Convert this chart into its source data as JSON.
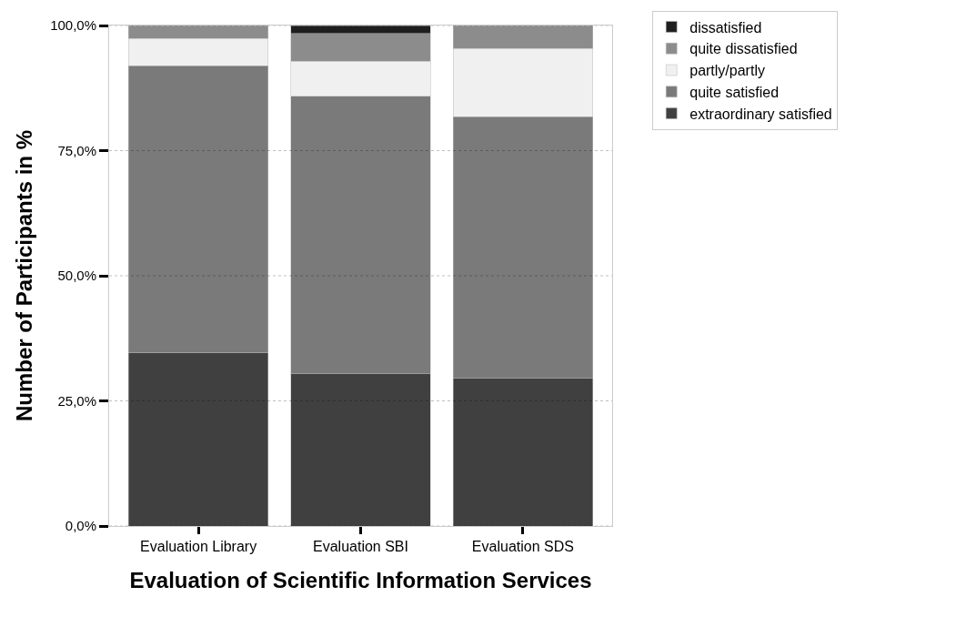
{
  "chart_data": {
    "type": "bar",
    "stacked": true,
    "xlabel": "Evaluation of Scientific Information Services",
    "ylabel": "Number of Participants in %",
    "categories": [
      "Evaluation Library",
      "Evaluation SBI",
      "Evaluation SDS"
    ],
    "series": [
      {
        "name": "extraordinary satisfied",
        "color": "#404040",
        "values": [
          34.7,
          30.4,
          29.5
        ]
      },
      {
        "name": "quite satisfied",
        "color": "#7a7a7a",
        "values": [
          57.3,
          55.5,
          52.3
        ]
      },
      {
        "name": "partly/partly",
        "color": "#f0f0f0",
        "values": [
          5.4,
          7.0,
          13.6
        ]
      },
      {
        "name": "quite dissatisfied",
        "color": "#8c8c8c",
        "values": [
          2.6,
          5.5,
          4.6
        ]
      },
      {
        "name": "dissatisfied",
        "color": "#1e1e1e",
        "values": [
          null,
          1.6,
          null
        ]
      }
    ],
    "ylim": [
      0,
      100
    ],
    "yticks": [
      {
        "value": 0,
        "label": "0,0%"
      },
      {
        "value": 25,
        "label": "25,0%"
      },
      {
        "value": 50,
        "label": "50,0%"
      },
      {
        "value": 75,
        "label": "75,0%"
      },
      {
        "value": 100,
        "label": "100,0%"
      }
    ],
    "grid": "y",
    "legend": "top right"
  }
}
